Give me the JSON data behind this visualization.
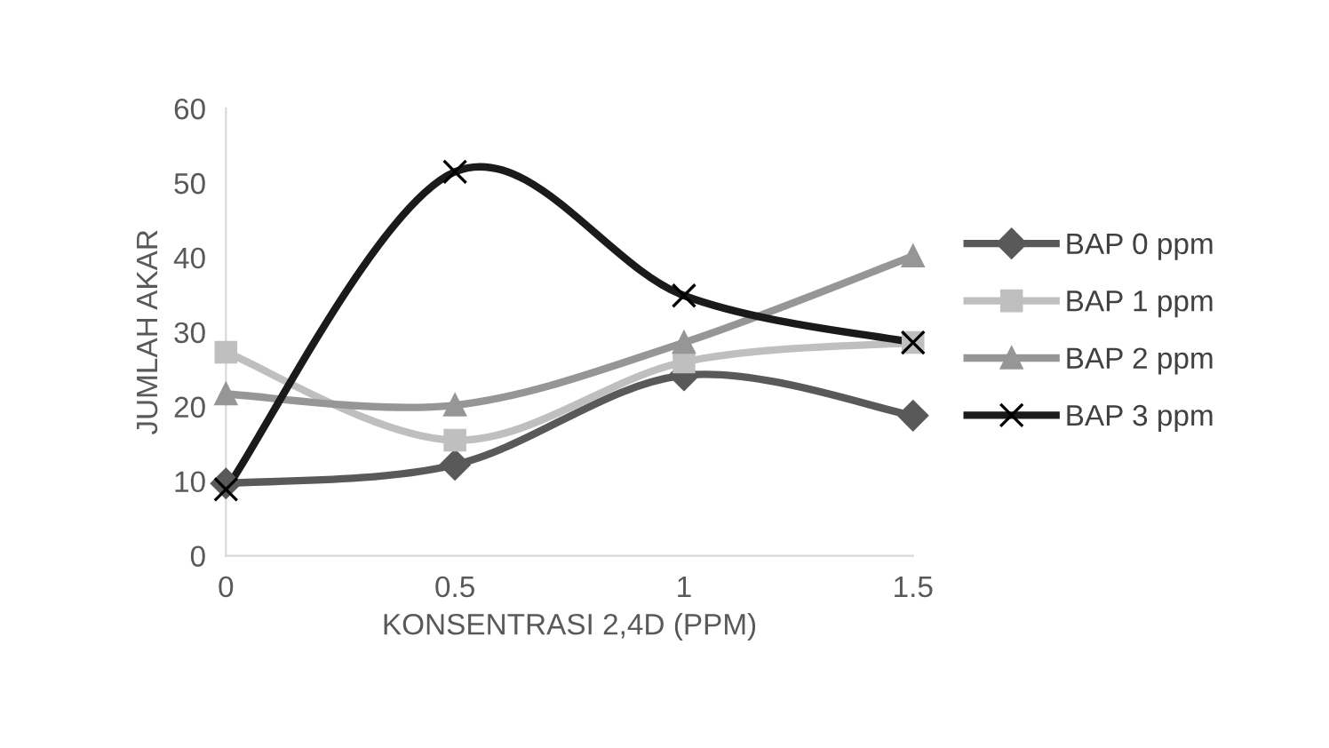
{
  "chart_data": {
    "type": "line",
    "xlabel": "KONSENTRASI 2,4D (PPM)",
    "ylabel": "JUMLAH AKAR",
    "categories": [
      "0",
      "0.5",
      "1",
      "1.5"
    ],
    "ylim": [
      0,
      60
    ],
    "yticks": [
      0,
      10,
      20,
      30,
      40,
      50,
      60
    ],
    "grid": false,
    "legend": "right",
    "series": [
      {
        "name": "BAP 0 ppm",
        "color": "#595959",
        "marker": "diamond",
        "values": [
          9.7,
          12.2,
          24.2,
          18.8
        ]
      },
      {
        "name": "BAP 1 ppm",
        "color": "#bfbfbf",
        "marker": "square",
        "values": [
          27.3,
          15.5,
          26.0,
          28.6
        ]
      },
      {
        "name": "BAP 2 ppm",
        "color": "#969696",
        "marker": "triangle",
        "values": [
          21.7,
          20.2,
          28.6,
          40.2
        ]
      },
      {
        "name": "BAP 3 ppm",
        "color": "#1a1a1a",
        "marker": "cross",
        "values": [
          8.9,
          51.5,
          34.9,
          28.6
        ]
      }
    ]
  }
}
